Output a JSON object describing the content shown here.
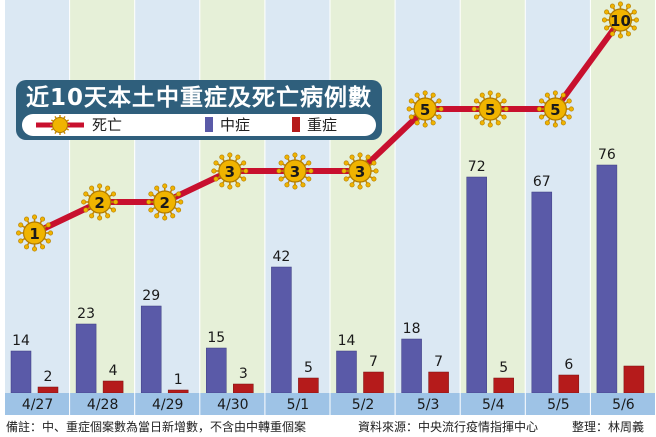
{
  "chart_data": {
    "type": "bar",
    "title": "近10天本土中重症及死亡病例數",
    "categories": [
      "4/27",
      "4/28",
      "4/29",
      "4/30",
      "5/1",
      "5/2",
      "5/3",
      "5/4",
      "5/5",
      "5/6"
    ],
    "series": [
      {
        "name": "中症",
        "type": "bar",
        "values": [
          14,
          23,
          29,
          15,
          42,
          14,
          18,
          72,
          67,
          76
        ],
        "color": "#5a5aa8"
      },
      {
        "name": "重症",
        "type": "bar",
        "values": [
          2,
          4,
          1,
          3,
          5,
          7,
          7,
          5,
          6,
          9
        ],
        "color": "#b51b1b",
        "value_labels": [
          "2",
          "4",
          "1",
          "3",
          "5",
          "7",
          "7",
          "5",
          "6",
          ""
        ]
      },
      {
        "name": "死亡",
        "type": "line",
        "values": [
          1,
          2,
          2,
          3,
          3,
          3,
          5,
          5,
          5,
          10
        ],
        "color": "#c8102e"
      }
    ],
    "legend": {
      "position": "top-left",
      "items": [
        "死亡",
        "中症",
        "重症"
      ]
    },
    "column_background_colors": [
      "#dbe8f3",
      "#e6f0d8"
    ],
    "grid": false
  },
  "footer": {
    "note": "備註：中、重症個案數為當日新增數，不含由中轉重個案",
    "source": "資料來源：中央流行疫情指揮中心",
    "editor": "整理：林周義"
  },
  "colors": {
    "title_box": "#2f5f7c",
    "virus_fill": "#f0b400",
    "line": "#c8102e"
  },
  "icons": {
    "death_marker": "coronavirus-icon"
  }
}
